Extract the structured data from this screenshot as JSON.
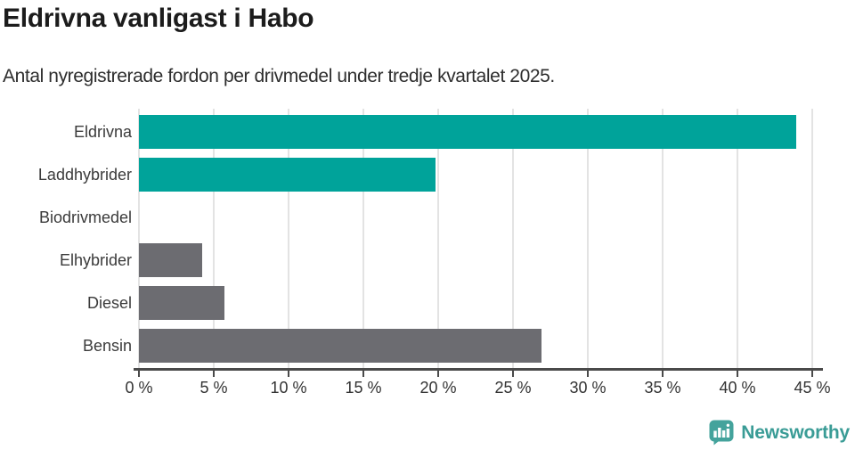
{
  "header": {
    "title": "Eldrivna vanligast i Habo",
    "subtitle": "Antal nyregistrerade fordon per drivmedel under tredje kvartalet 2025."
  },
  "chart_data": {
    "type": "bar",
    "orientation": "horizontal",
    "title": "Eldrivna vanligast i Habo",
    "subtitle": "Antal nyregistrerade fordon per drivmedel under tredje kvartalet 2025.",
    "categories": [
      "Eldrivna",
      "Laddhybrider",
      "Biodrivmedel",
      "Elhybrider",
      "Diesel",
      "Bensin"
    ],
    "values": [
      43.9,
      19.8,
      0,
      4.2,
      5.7,
      26.9
    ],
    "unit": "%",
    "bar_colors": [
      "#00A39A",
      "#00A39A",
      "#6C6C71",
      "#6C6C71",
      "#6C6C71",
      "#6C6C71"
    ],
    "xlabel": "",
    "ylabel": "",
    "xlim": [
      0,
      45
    ],
    "x_ticks": [
      0,
      5,
      10,
      15,
      20,
      25,
      30,
      35,
      40,
      45
    ],
    "x_tick_labels": [
      "0 %",
      "5 %",
      "10 %",
      "15 %",
      "20 %",
      "25 %",
      "30 %",
      "35 %",
      "40 %",
      "45 %"
    ],
    "grid": "vertical",
    "legend": "none"
  },
  "footer": {
    "brand": "Newsworthy"
  },
  "colors": {
    "teal": "#00A39A",
    "gray": "#6C6C71",
    "axis": "#4A4A4A",
    "gridline": "#E3E3E3",
    "logo": "#3A9C96"
  }
}
